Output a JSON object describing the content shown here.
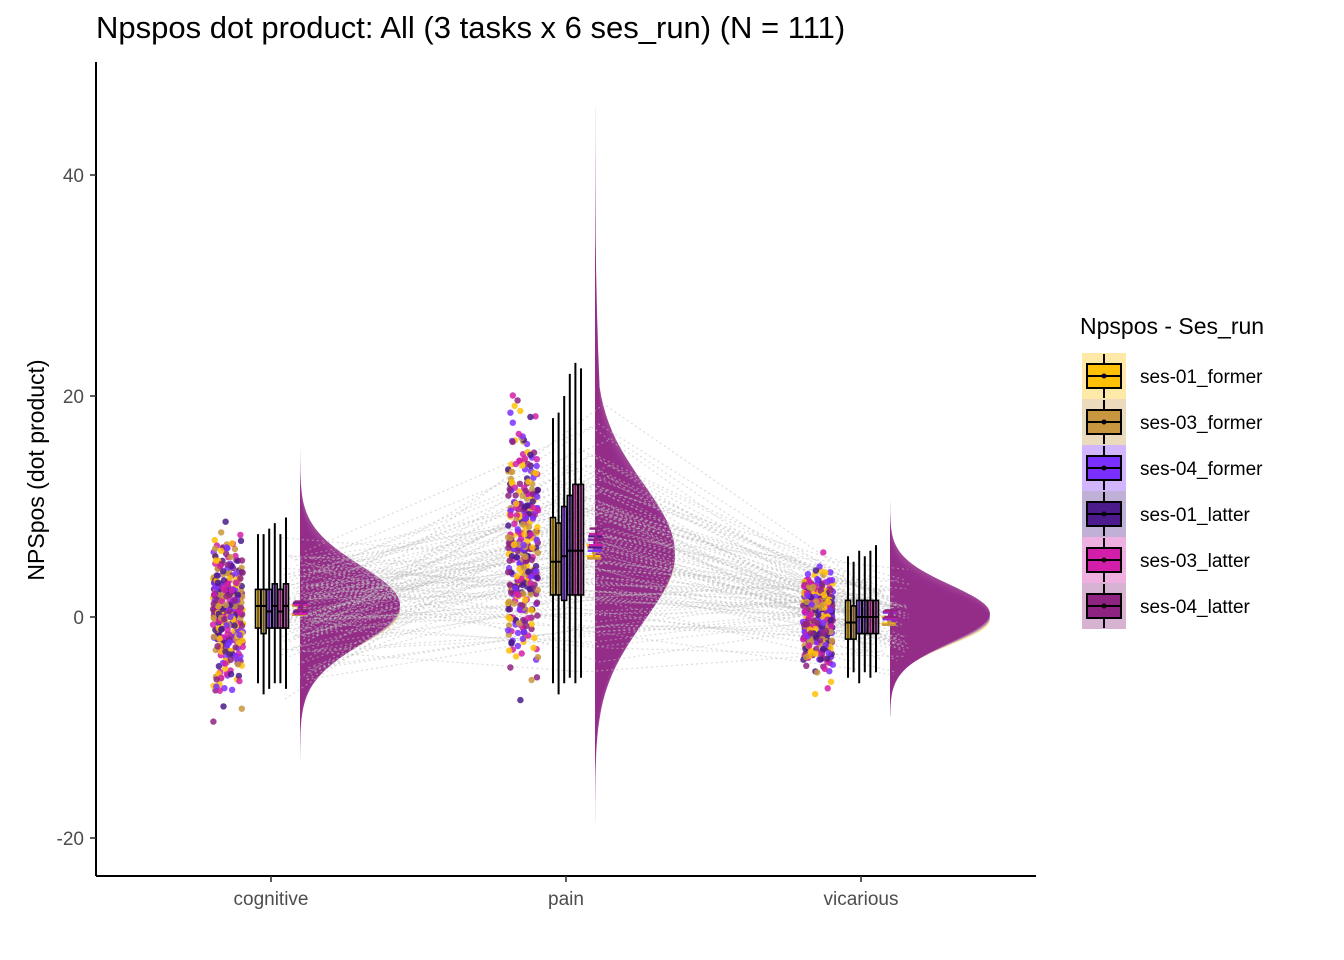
{
  "chart_data": {
    "type": "raincloud",
    "title": "Npspos dot product: All (3 tasks x 6 ses_run) (N = 111)",
    "xlabel": "",
    "ylabel": "NPSpos  (dot product)",
    "ylim": [
      -23,
      51
    ],
    "yticks": [
      -20,
      0,
      20,
      40
    ],
    "categories": [
      "cognitive",
      "pain",
      "vicarious"
    ],
    "legend": {
      "title": "Npspos - Ses_run",
      "position": "right"
    },
    "grid": false,
    "series": [
      {
        "name": "ses-01_former",
        "color": "#FFC107",
        "box": [
          {
            "whisker_low": -6,
            "q1": -1,
            "median": 1,
            "q3": 2.5,
            "whisker_high": 7.5
          },
          {
            "whisker_low": -6,
            "q1": 2,
            "median": 5,
            "q3": 9,
            "whisker_high": 18
          },
          {
            "whisker_low": -5.5,
            "q1": -2,
            "median": -0.5,
            "q3": 1.5,
            "whisker_high": 5.5
          }
        ],
        "mean": [
          0.7,
          6.0,
          -0.3
        ],
        "se": [
          0.4,
          0.5,
          0.3
        ]
      },
      {
        "name": "ses-03_former",
        "color": "#C8963E",
        "box": [
          {
            "whisker_low": -7,
            "q1": -1.5,
            "median": 1,
            "q3": 2.5,
            "whisker_high": 7.5
          },
          {
            "whisker_low": -7,
            "q1": 2,
            "median": 5,
            "q3": 8.5,
            "whisker_high": 18.5
          },
          {
            "whisker_low": -5,
            "q1": -2,
            "median": -0.5,
            "q3": 1,
            "whisker_high": 5
          }
        ],
        "mean": [
          0.6,
          5.8,
          -0.4
        ],
        "se": [
          0.4,
          0.5,
          0.3
        ]
      },
      {
        "name": "ses-04_former",
        "color": "#7B2FFF",
        "box": [
          {
            "whisker_low": -6.5,
            "q1": -1,
            "median": 0.5,
            "q3": 2.5,
            "whisker_high": 8
          },
          {
            "whisker_low": -6,
            "q1": 1.5,
            "median": 5.5,
            "q3": 10,
            "whisker_high": 20
          },
          {
            "whisker_low": -6,
            "q1": -1.5,
            "median": 0,
            "q3": 1.5,
            "whisker_high": 6
          }
        ],
        "mean": [
          0.8,
          6.5,
          0.1
        ],
        "se": [
          0.4,
          0.5,
          0.3
        ]
      },
      {
        "name": "ses-01_latter",
        "color": "#4B1A8C",
        "box": [
          {
            "whisker_low": -6,
            "q1": -1,
            "median": 1,
            "q3": 3,
            "whisker_high": 8.5
          },
          {
            "whisker_low": -5.5,
            "q1": 2,
            "median": 6,
            "q3": 11,
            "whisker_high": 22
          },
          {
            "whisker_low": -5,
            "q1": -1.5,
            "median": 0,
            "q3": 1.5,
            "whisker_high": 5.5
          }
        ],
        "mean": [
          0.9,
          6.8,
          0.2
        ],
        "se": [
          0.4,
          0.5,
          0.3
        ]
      },
      {
        "name": "ses-03_latter",
        "color": "#D21EA8",
        "box": [
          {
            "whisker_low": -6,
            "q1": -1,
            "median": 0.5,
            "q3": 2.5,
            "whisker_high": 7.5
          },
          {
            "whisker_low": -6,
            "q1": 2,
            "median": 6,
            "q3": 12,
            "whisker_high": 23
          },
          {
            "whisker_low": -5.5,
            "q1": -1.5,
            "median": 0,
            "q3": 1.5,
            "whisker_high": 6
          }
        ],
        "mean": [
          0.7,
          7.0,
          0.2
        ],
        "se": [
          0.4,
          0.5,
          0.3
        ]
      },
      {
        "name": "ses-04_latter",
        "color": "#8E2382",
        "box": [
          {
            "whisker_low": -6.5,
            "q1": -1,
            "median": 1,
            "q3": 3,
            "whisker_high": 9
          },
          {
            "whisker_low": -5.5,
            "q1": 2,
            "median": 6,
            "q3": 12,
            "whisker_high": 22.5
          },
          {
            "whisker_low": -5,
            "q1": -1.5,
            "median": 0,
            "q3": 1.5,
            "whisker_high": 6.5
          }
        ],
        "mean": [
          1.0,
          7.5,
          0.3
        ],
        "se": [
          0.4,
          0.5,
          0.3
        ]
      }
    ],
    "density": [
      {
        "category": "cognitive",
        "mean": 0.8,
        "sd": 3.3,
        "min": -13,
        "max": 16
      },
      {
        "category": "pain",
        "mean": 5.5,
        "sd": 5.8,
        "min": -19,
        "max": 46
      },
      {
        "category": "vicarious",
        "mean": 0.0,
        "sd": 2.4,
        "min": -9,
        "max": 13
      }
    ]
  }
}
